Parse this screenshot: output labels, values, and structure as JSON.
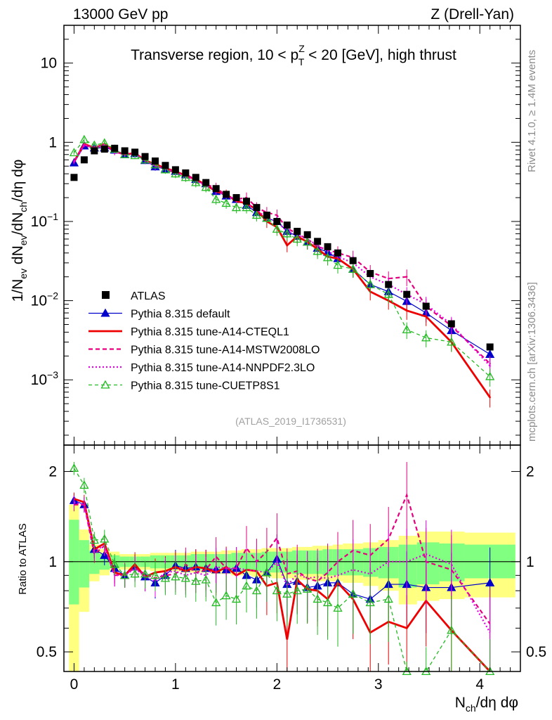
{
  "header": {
    "left": "13000 GeV pp",
    "right": "Z (Drell-Yan)"
  },
  "side_text": {
    "rivet": "Rivet 4.1.0, ≥ 1.4M events",
    "mcplots": "mcplots.cern.ch [arXiv:1306.3436]"
  },
  "analysis_id": "(ATLAS_2019_I1736531)",
  "colors": {
    "atlas": "#000000",
    "default": "#0000cc",
    "cteql1": "#ee0000",
    "mstw": "#e6007e",
    "nnpdf": "#e600e6",
    "cuetp8s1": "#22bb22",
    "band_outer": "#ffff80",
    "band_inner": "#80ff80"
  },
  "chart_data": [
    {
      "type": "line",
      "title": "Transverse region, 10 < p_T^Z < 20 [GeV], high thrust",
      "title_parts": {
        "pre": "Transverse region, 10 < p",
        "sub": "T",
        "sup": "Z",
        "post": " < 20 [GeV], high thrust"
      },
      "ylabel": "1/N_ev dN_ev/dN_ch/dη dφ",
      "ylabel_parts": {
        "a": "1/N",
        "a_sub": "ev",
        "b": " dN",
        "b_sub": "ev",
        "c": "/dN",
        "c_sub": "ch",
        "d": "/dη dφ"
      },
      "yscale": "log",
      "ylim": [
        0.00015,
        30
      ],
      "xlim": [
        -0.1,
        4.4
      ],
      "y_ticks": [
        {
          "value": 10,
          "label": "10"
        },
        {
          "value": 1,
          "label": "1"
        },
        {
          "value": 0.1,
          "label": "10^-1"
        },
        {
          "value": 0.01,
          "label": "10^-2"
        },
        {
          "value": 0.001,
          "label": "10^-3"
        }
      ],
      "x": [
        0.0,
        0.1,
        0.2,
        0.3,
        0.4,
        0.5,
        0.6,
        0.7,
        0.8,
        0.9,
        1.0,
        1.1,
        1.2,
        1.3,
        1.4,
        1.5,
        1.6,
        1.7,
        1.8,
        1.9,
        2.0,
        2.1,
        2.2,
        2.3,
        2.4,
        2.5,
        2.6,
        2.75,
        2.92,
        3.1,
        3.28,
        3.47,
        3.72,
        4.1
      ],
      "series": [
        {
          "name": "ATLAS",
          "style": "square",
          "values": [
            0.36,
            0.6,
            0.78,
            0.82,
            0.84,
            0.78,
            0.75,
            0.66,
            0.58,
            0.51,
            0.45,
            0.41,
            0.36,
            0.31,
            0.26,
            0.22,
            0.2,
            0.18,
            0.15,
            0.12,
            0.1,
            0.09,
            0.075,
            0.068,
            0.056,
            0.048,
            0.04,
            0.032,
            0.022,
            0.016,
            0.012,
            0.0085,
            0.0051,
            0.0026
          ]
        },
        {
          "name": "Pythia 8.315 default",
          "style": "solid-triangle",
          "values": [
            0.55,
            0.9,
            0.85,
            0.85,
            0.8,
            0.7,
            0.72,
            0.59,
            0.49,
            0.46,
            0.43,
            0.39,
            0.34,
            0.3,
            0.24,
            0.21,
            0.19,
            0.16,
            0.13,
            0.11,
            0.1,
            0.075,
            0.065,
            0.055,
            0.046,
            0.041,
            0.034,
            0.025,
            0.016,
            0.013,
            0.0098,
            0.007,
            0.0042,
            0.0021
          ]
        },
        {
          "name": "Pythia 8.315 tune-A14-CTEQL1",
          "style": "solid-thick",
          "values": [
            0.57,
            0.95,
            0.85,
            0.95,
            0.77,
            0.7,
            0.73,
            0.59,
            0.53,
            0.47,
            0.43,
            0.38,
            0.34,
            0.29,
            0.24,
            0.22,
            0.18,
            0.17,
            0.14,
            0.1,
            0.085,
            0.05,
            0.065,
            0.055,
            0.045,
            0.036,
            0.034,
            0.025,
            0.013,
            0.01,
            0.0075,
            0.0063,
            0.003,
            0.0006
          ]
        },
        {
          "name": "Pythia 8.315 tune-A14-MSTW2008LO",
          "style": "dashed",
          "values": [
            0.56,
            0.93,
            0.83,
            0.93,
            0.75,
            0.71,
            0.71,
            0.6,
            0.51,
            0.46,
            0.41,
            0.4,
            0.33,
            0.29,
            0.27,
            0.21,
            0.19,
            0.2,
            0.15,
            0.13,
            0.12,
            0.082,
            0.07,
            0.06,
            0.048,
            0.044,
            0.04,
            0.035,
            0.023,
            0.019,
            0.02,
            0.0085,
            0.0048,
            0.0016
          ]
        },
        {
          "name": "Pythia 8.315 tune-A14-NNPDF2.3LO",
          "style": "dotted",
          "values": [
            0.57,
            0.93,
            0.85,
            0.93,
            0.76,
            0.7,
            0.71,
            0.59,
            0.5,
            0.47,
            0.42,
            0.37,
            0.33,
            0.28,
            0.25,
            0.21,
            0.19,
            0.17,
            0.14,
            0.11,
            0.1,
            0.075,
            0.068,
            0.06,
            0.05,
            0.042,
            0.036,
            0.03,
            0.02,
            0.016,
            0.012,
            0.009,
            0.005,
            0.0015
          ]
        },
        {
          "name": "Pythia 8.315 tune-CUETP8S1",
          "style": "dashed-open-triangle",
          "values": [
            0.74,
            1.08,
            0.92,
            0.98,
            0.82,
            0.7,
            0.68,
            0.6,
            0.52,
            0.45,
            0.4,
            0.36,
            0.31,
            0.27,
            0.19,
            0.17,
            0.15,
            0.15,
            0.12,
            0.11,
            0.08,
            0.07,
            0.06,
            0.055,
            0.042,
            0.035,
            0.028,
            0.025,
            0.016,
            0.012,
            0.0043,
            0.0034,
            0.003,
            0.0011
          ]
        }
      ]
    },
    {
      "type": "line",
      "title": "",
      "ylabel": "Ratio to ATLAS",
      "xlabel": "N_ch/dη dφ",
      "xlabel_parts": {
        "a": "N",
        "a_sub": "ch",
        "b": "/dη dφ"
      },
      "yscale": "log",
      "ylim": [
        0.43,
        2.45
      ],
      "xlim": [
        -0.1,
        4.4
      ],
      "y_ticks": [
        {
          "value": 0.5,
          "label": "0.5"
        },
        {
          "value": 1,
          "label": "1"
        },
        {
          "value": 2,
          "label": "2"
        }
      ],
      "x_ticks": [
        {
          "value": 0,
          "label": "0"
        },
        {
          "value": 1,
          "label": "1"
        },
        {
          "value": 2,
          "label": "2"
        },
        {
          "value": 3,
          "label": "3"
        },
        {
          "value": 4,
          "label": "4"
        }
      ],
      "x": [
        0.0,
        0.1,
        0.2,
        0.3,
        0.4,
        0.5,
        0.6,
        0.7,
        0.8,
        0.9,
        1.0,
        1.1,
        1.2,
        1.3,
        1.4,
        1.5,
        1.6,
        1.7,
        1.8,
        1.9,
        2.0,
        2.1,
        2.2,
        2.3,
        2.4,
        2.5,
        2.6,
        2.75,
        2.92,
        3.1,
        3.28,
        3.47,
        3.72,
        4.1
      ],
      "bands": {
        "edges": [
          -0.05,
          0.05,
          0.15,
          0.25,
          0.35,
          0.45,
          0.55,
          0.65,
          0.75,
          0.85,
          0.95,
          1.05,
          1.15,
          1.25,
          1.35,
          1.45,
          1.55,
          1.65,
          1.75,
          1.85,
          1.95,
          2.05,
          2.15,
          2.25,
          2.35,
          2.45,
          2.55,
          2.65,
          2.85,
          3.0,
          3.2,
          3.38,
          3.6,
          3.85,
          4.35
        ],
        "outer_lo": [
          0.35,
          0.68,
          0.86,
          0.9,
          0.93,
          0.94,
          0.94,
          0.94,
          0.93,
          0.93,
          0.93,
          0.92,
          0.92,
          0.92,
          0.91,
          0.91,
          0.9,
          0.9,
          0.89,
          0.89,
          0.88,
          0.88,
          0.87,
          0.87,
          0.86,
          0.86,
          0.86,
          0.85,
          0.83,
          0.8,
          0.72,
          0.74,
          0.75,
          0.76
        ],
        "outer_hi": [
          1.55,
          1.28,
          1.14,
          1.1,
          1.08,
          1.06,
          1.06,
          1.06,
          1.07,
          1.07,
          1.07,
          1.07,
          1.08,
          1.08,
          1.08,
          1.09,
          1.09,
          1.1,
          1.1,
          1.11,
          1.11,
          1.11,
          1.12,
          1.12,
          1.13,
          1.13,
          1.14,
          1.15,
          1.16,
          1.18,
          1.22,
          1.26,
          1.26,
          1.25
        ],
        "inner_lo": [
          0.72,
          0.82,
          0.91,
          0.94,
          0.95,
          0.96,
          0.96,
          0.96,
          0.95,
          0.95,
          0.95,
          0.95,
          0.94,
          0.94,
          0.94,
          0.94,
          0.93,
          0.93,
          0.93,
          0.92,
          0.92,
          0.92,
          0.91,
          0.91,
          0.91,
          0.9,
          0.9,
          0.9,
          0.89,
          0.88,
          0.82,
          0.84,
          0.86,
          0.88
        ],
        "inner_hi": [
          1.38,
          1.18,
          1.09,
          1.06,
          1.05,
          1.04,
          1.04,
          1.04,
          1.05,
          1.05,
          1.05,
          1.05,
          1.06,
          1.06,
          1.06,
          1.06,
          1.07,
          1.07,
          1.07,
          1.08,
          1.08,
          1.08,
          1.09,
          1.09,
          1.09,
          1.1,
          1.1,
          1.1,
          1.11,
          1.12,
          1.14,
          1.16,
          1.15,
          1.14
        ]
      },
      "series": [
        {
          "name": "Pythia 8.315 default",
          "values": [
            1.6,
            1.55,
            1.1,
            1.05,
            0.95,
            0.9,
            0.96,
            0.89,
            0.85,
            0.9,
            0.97,
            0.95,
            0.96,
            0.95,
            0.94,
            0.94,
            0.95,
            0.9,
            0.87,
            0.92,
            1.02,
            0.84,
            0.86,
            0.82,
            0.83,
            0.85,
            0.85,
            0.78,
            0.75,
            0.84,
            0.84,
            0.82,
            0.82,
            0.85
          ]
        },
        {
          "name": "Pythia 8.315 tune-A14-CTEQL1",
          "values": [
            1.62,
            1.58,
            1.1,
            1.15,
            0.92,
            0.9,
            0.98,
            0.89,
            0.92,
            0.93,
            0.96,
            0.93,
            0.96,
            0.95,
            0.92,
            0.96,
            0.9,
            0.94,
            0.93,
            0.83,
            0.85,
            0.55,
            0.87,
            0.81,
            0.8,
            0.75,
            0.85,
            0.75,
            0.58,
            0.63,
            0.6,
            0.74,
            0.59,
            0.23
          ]
        },
        {
          "name": "Pythia 8.315 tune-A14-MSTW2008LO",
          "values": [
            1.55,
            1.55,
            1.06,
            1.13,
            0.9,
            0.91,
            0.95,
            0.91,
            0.88,
            0.9,
            0.91,
            0.98,
            0.92,
            0.94,
            1.04,
            0.95,
            0.95,
            1.11,
            1.0,
            1.08,
            1.2,
            0.91,
            0.93,
            0.88,
            0.86,
            0.92,
            1.0,
            1.09,
            1.05,
            1.19,
            1.67,
            1.0,
            0.94,
            0.62
          ]
        },
        {
          "name": "Pythia 8.315 tune-A14-NNPDF2.3LO",
          "values": [
            1.58,
            1.55,
            1.09,
            1.13,
            0.9,
            0.9,
            0.95,
            0.89,
            0.86,
            0.92,
            0.93,
            0.9,
            0.92,
            0.9,
            0.96,
            0.95,
            0.95,
            0.94,
            0.93,
            0.92,
            1.0,
            0.83,
            0.91,
            0.88,
            0.89,
            0.88,
            0.9,
            0.94,
            0.91,
            1.0,
            1.0,
            1.06,
            0.98,
            0.58
          ]
        },
        {
          "name": "Pythia 8.315 tune-CUETP8S1",
          "values": [
            2.05,
            1.8,
            1.18,
            1.19,
            0.98,
            0.9,
            0.91,
            0.91,
            0.9,
            0.88,
            0.89,
            0.88,
            0.86,
            0.87,
            0.73,
            0.77,
            0.75,
            0.83,
            0.8,
            0.92,
            0.8,
            0.78,
            0.8,
            0.81,
            0.75,
            0.73,
            0.7,
            0.78,
            0.73,
            0.75,
            0.36,
            0.4,
            0.59,
            0.42
          ]
        }
      ]
    }
  ]
}
